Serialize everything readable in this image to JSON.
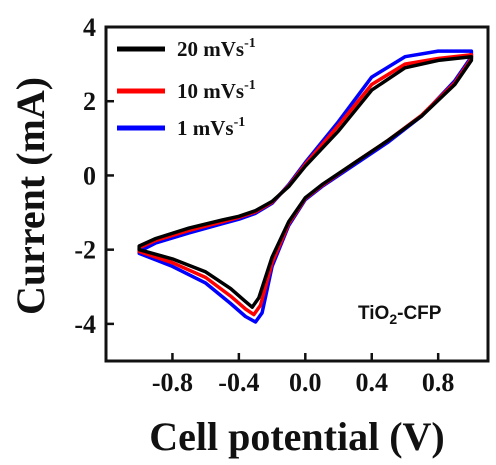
{
  "chart_data": {
    "type": "line",
    "xlabel": "Cell potential (V)",
    "ylabel": "Current (mA)",
    "xlim": [
      -1.2,
      1.1
    ],
    "ylim": [
      -5,
      4
    ],
    "xticks": [
      -0.8,
      -0.4,
      0.0,
      0.4,
      0.8
    ],
    "xtick_labels": [
      "-0.8",
      "-0.4",
      "0.0",
      "0.4",
      "0.8"
    ],
    "yticks": [
      -4,
      -2,
      0,
      2,
      4
    ],
    "ytick_labels": [
      "-4",
      "-2",
      "0",
      "2",
      "4"
    ],
    "legend": {
      "position": "top-left",
      "entries": [
        {
          "label": "20 mVs",
          "sup": "-1",
          "color": "#000000"
        },
        {
          "label": "10 mVs",
          "sup": "-1",
          "color": "#ff0000"
        },
        {
          "label": "1 mVs",
          "sup": "-1",
          "color": "#0000ff"
        }
      ]
    },
    "annotation": {
      "text": "TiO",
      "sub": "2",
      "rest": "-CFP"
    },
    "series": [
      {
        "name": "20 mVs-1",
        "color": "#000000",
        "x": [
          -1.0,
          -0.8,
          -0.6,
          -0.45,
          -0.36,
          -0.32,
          -0.28,
          -0.2,
          -0.1,
          0.0,
          0.1,
          0.3,
          0.5,
          0.7,
          0.9,
          1.0,
          1.0,
          0.8,
          0.6,
          0.4,
          0.2,
          0.0,
          -0.1,
          -0.2,
          -0.3,
          -0.4,
          -0.5,
          -0.7,
          -0.9,
          -1.0
        ],
        "y": [
          -2.0,
          -2.25,
          -2.6,
          -3.05,
          -3.4,
          -3.55,
          -3.3,
          -2.2,
          -1.25,
          -0.6,
          -0.25,
          0.35,
          0.95,
          1.6,
          2.45,
          3.1,
          3.2,
          3.1,
          2.9,
          2.3,
          1.2,
          0.25,
          -0.3,
          -0.7,
          -0.95,
          -1.1,
          -1.2,
          -1.42,
          -1.7,
          -1.9
        ]
      },
      {
        "name": "10 mVs-1",
        "color": "#ff0000",
        "x": [
          -1.0,
          -0.8,
          -0.6,
          -0.45,
          -0.36,
          -0.31,
          -0.27,
          -0.2,
          -0.1,
          0.0,
          0.1,
          0.3,
          0.5,
          0.7,
          0.9,
          1.0,
          1.0,
          0.8,
          0.6,
          0.4,
          0.2,
          0.0,
          -0.1,
          -0.2,
          -0.3,
          -0.4,
          -0.5,
          -0.7,
          -0.9,
          -1.0
        ],
        "y": [
          -2.05,
          -2.35,
          -2.75,
          -3.25,
          -3.6,
          -3.75,
          -3.5,
          -2.35,
          -1.3,
          -0.62,
          -0.27,
          0.35,
          0.95,
          1.62,
          2.5,
          3.15,
          3.25,
          3.15,
          3.0,
          2.45,
          1.35,
          0.3,
          -0.28,
          -0.72,
          -0.98,
          -1.13,
          -1.25,
          -1.48,
          -1.75,
          -1.95
        ]
      },
      {
        "name": "1 mVs-1",
        "color": "#0000ff",
        "x": [
          -1.0,
          -0.8,
          -0.6,
          -0.45,
          -0.36,
          -0.3,
          -0.26,
          -0.2,
          -0.1,
          0.0,
          0.1,
          0.3,
          0.5,
          0.7,
          0.9,
          1.0,
          1.0,
          0.8,
          0.6,
          0.4,
          0.2,
          0.0,
          -0.1,
          -0.2,
          -0.3,
          -0.4,
          -0.5,
          -0.7,
          -0.9,
          -1.0
        ],
        "y": [
          -2.1,
          -2.45,
          -2.9,
          -3.45,
          -3.8,
          -3.95,
          -3.7,
          -2.45,
          -1.35,
          -0.65,
          -0.3,
          0.3,
          0.9,
          1.6,
          2.55,
          3.2,
          3.35,
          3.35,
          3.2,
          2.65,
          1.45,
          0.35,
          -0.25,
          -0.75,
          -1.02,
          -1.18,
          -1.3,
          -1.55,
          -1.82,
          -2.05
        ]
      }
    ]
  }
}
